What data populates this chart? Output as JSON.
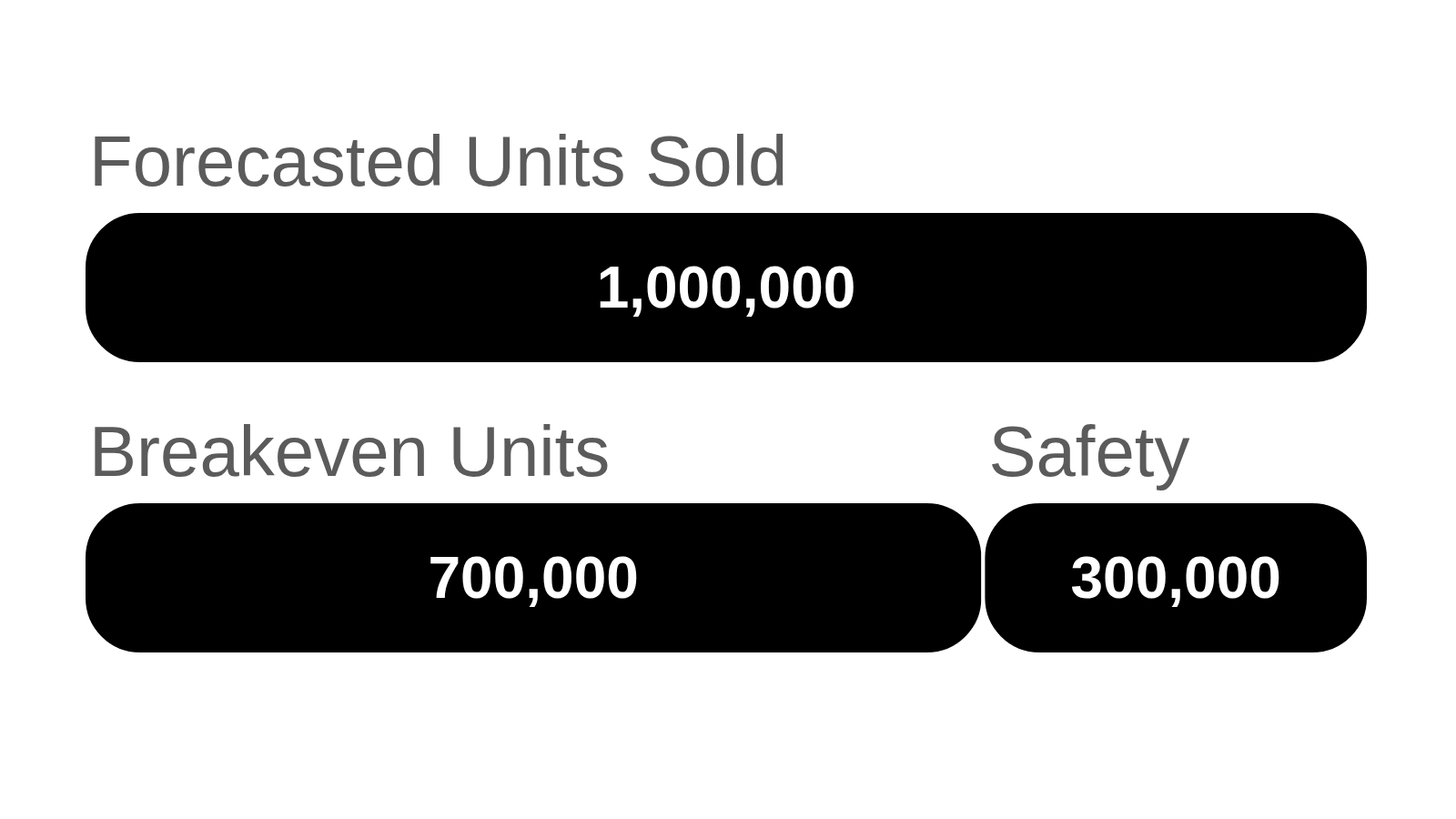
{
  "chart_data": {
    "type": "bar",
    "orientation": "horizontal",
    "stacked": true,
    "categories": [
      null,
      null
    ],
    "series": [
      {
        "name": "Forecasted Units Sold",
        "color": "#000000",
        "values": [
          1000000,
          null
        ],
        "value_labels": [
          "1,000,000",
          null
        ]
      },
      {
        "name": "Breakeven Units",
        "color": "#000000",
        "values": [
          null,
          700000
        ],
        "value_labels": [
          null,
          "700,000"
        ]
      },
      {
        "name": "Safety",
        "color": "#000000",
        "values": [
          null,
          300000
        ],
        "value_labels": [
          null,
          "300,000"
        ]
      }
    ]
  }
}
